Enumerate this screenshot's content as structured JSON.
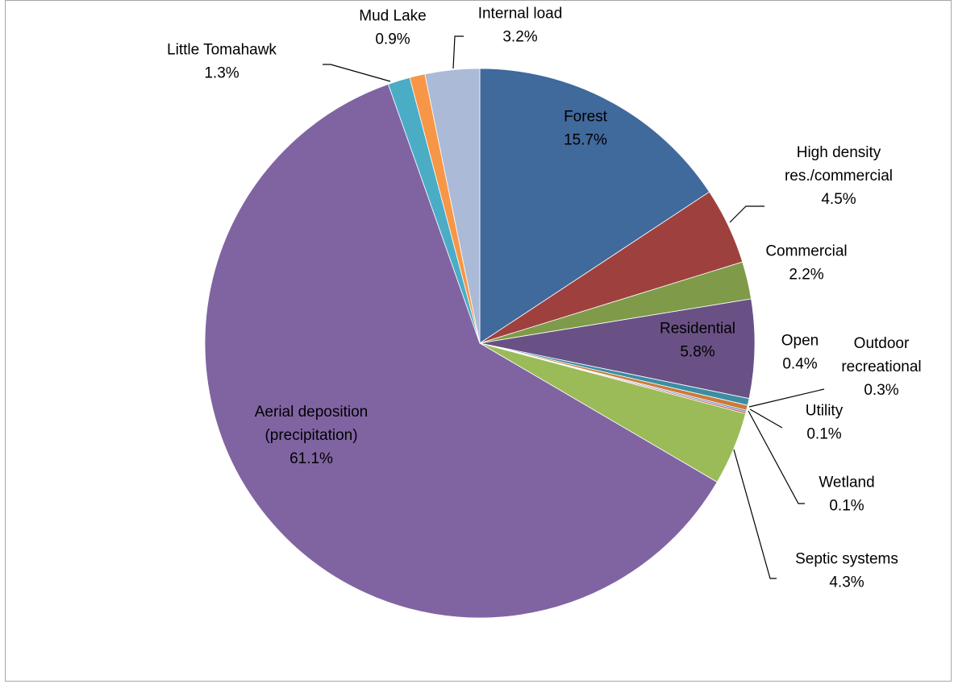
{
  "chart_data": {
    "type": "pie",
    "title": "",
    "legend": "none",
    "start_angle_deg": 0,
    "direction": "clockwise",
    "slices": [
      {
        "name": "Forest",
        "value": 15.7,
        "label": "15.7%",
        "color": "#40699c"
      },
      {
        "name": "High density res./commercial",
        "value": 4.5,
        "label": "4.5%",
        "color": "#9e413e"
      },
      {
        "name": "Commercial",
        "value": 2.2,
        "label": "2.2%",
        "color": "#7f9a48"
      },
      {
        "name": "Residential",
        "value": 5.8,
        "label": "5.8%",
        "color": "#695185"
      },
      {
        "name": "Open",
        "value": 0.4,
        "label": "0.4%",
        "color": "#3c8da3"
      },
      {
        "name": "Outdoor recreational",
        "value": 0.3,
        "label": "0.3%",
        "color": "#cc7b38"
      },
      {
        "name": "Utility",
        "value": 0.1,
        "label": "0.1%",
        "color": "#4f81bd"
      },
      {
        "name": "Wetland",
        "value": 0.1,
        "label": "0.1%",
        "color": "#c0504d"
      },
      {
        "name": "Septic systems",
        "value": 4.3,
        "label": "4.3%",
        "color": "#9bbb59"
      },
      {
        "name": "Aerial deposition (precipitation)",
        "value": 61.1,
        "label": "61.1%",
        "color": "#8064a2"
      },
      {
        "name": "Little Tomahawk",
        "value": 1.3,
        "label": "1.3%",
        "color": "#4bacc6"
      },
      {
        "name": "Mud Lake",
        "value": 0.9,
        "label": "0.9%",
        "color": "#f79646"
      },
      {
        "name": "Internal load",
        "value": 3.2,
        "label": "3.2%",
        "color": "#aabad7"
      }
    ],
    "labels": [
      {
        "slice": 0,
        "lines": [
          "Forest",
          "15.7%"
        ]
      },
      {
        "slice": 1,
        "lines": [
          "High density",
          "res./commercial",
          "4.5%"
        ]
      },
      {
        "slice": 2,
        "lines": [
          "Commercial",
          "2.2%"
        ]
      },
      {
        "slice": 3,
        "lines": [
          "Residential",
          "5.8%"
        ]
      },
      {
        "slice": 4,
        "lines": [
          "Open",
          "0.4%"
        ]
      },
      {
        "slice": 5,
        "lines": [
          "Outdoor",
          "recreational",
          "0.3%"
        ]
      },
      {
        "slice": 6,
        "lines": [
          "Utility",
          "0.1%"
        ]
      },
      {
        "slice": 7,
        "lines": [
          "Wetland",
          "0.1%"
        ]
      },
      {
        "slice": 8,
        "lines": [
          "Septic systems",
          "4.3%"
        ]
      },
      {
        "slice": 9,
        "lines": [
          "Aerial deposition",
          "(precipitation)",
          "61.1%"
        ]
      },
      {
        "slice": 10,
        "lines": [
          "Little Tomahawk",
          "1.3%"
        ]
      },
      {
        "slice": 11,
        "lines": [
          "Mud Lake",
          "0.9%"
        ]
      },
      {
        "slice": 12,
        "lines": [
          "Internal load",
          "3.2%"
        ]
      }
    ]
  }
}
